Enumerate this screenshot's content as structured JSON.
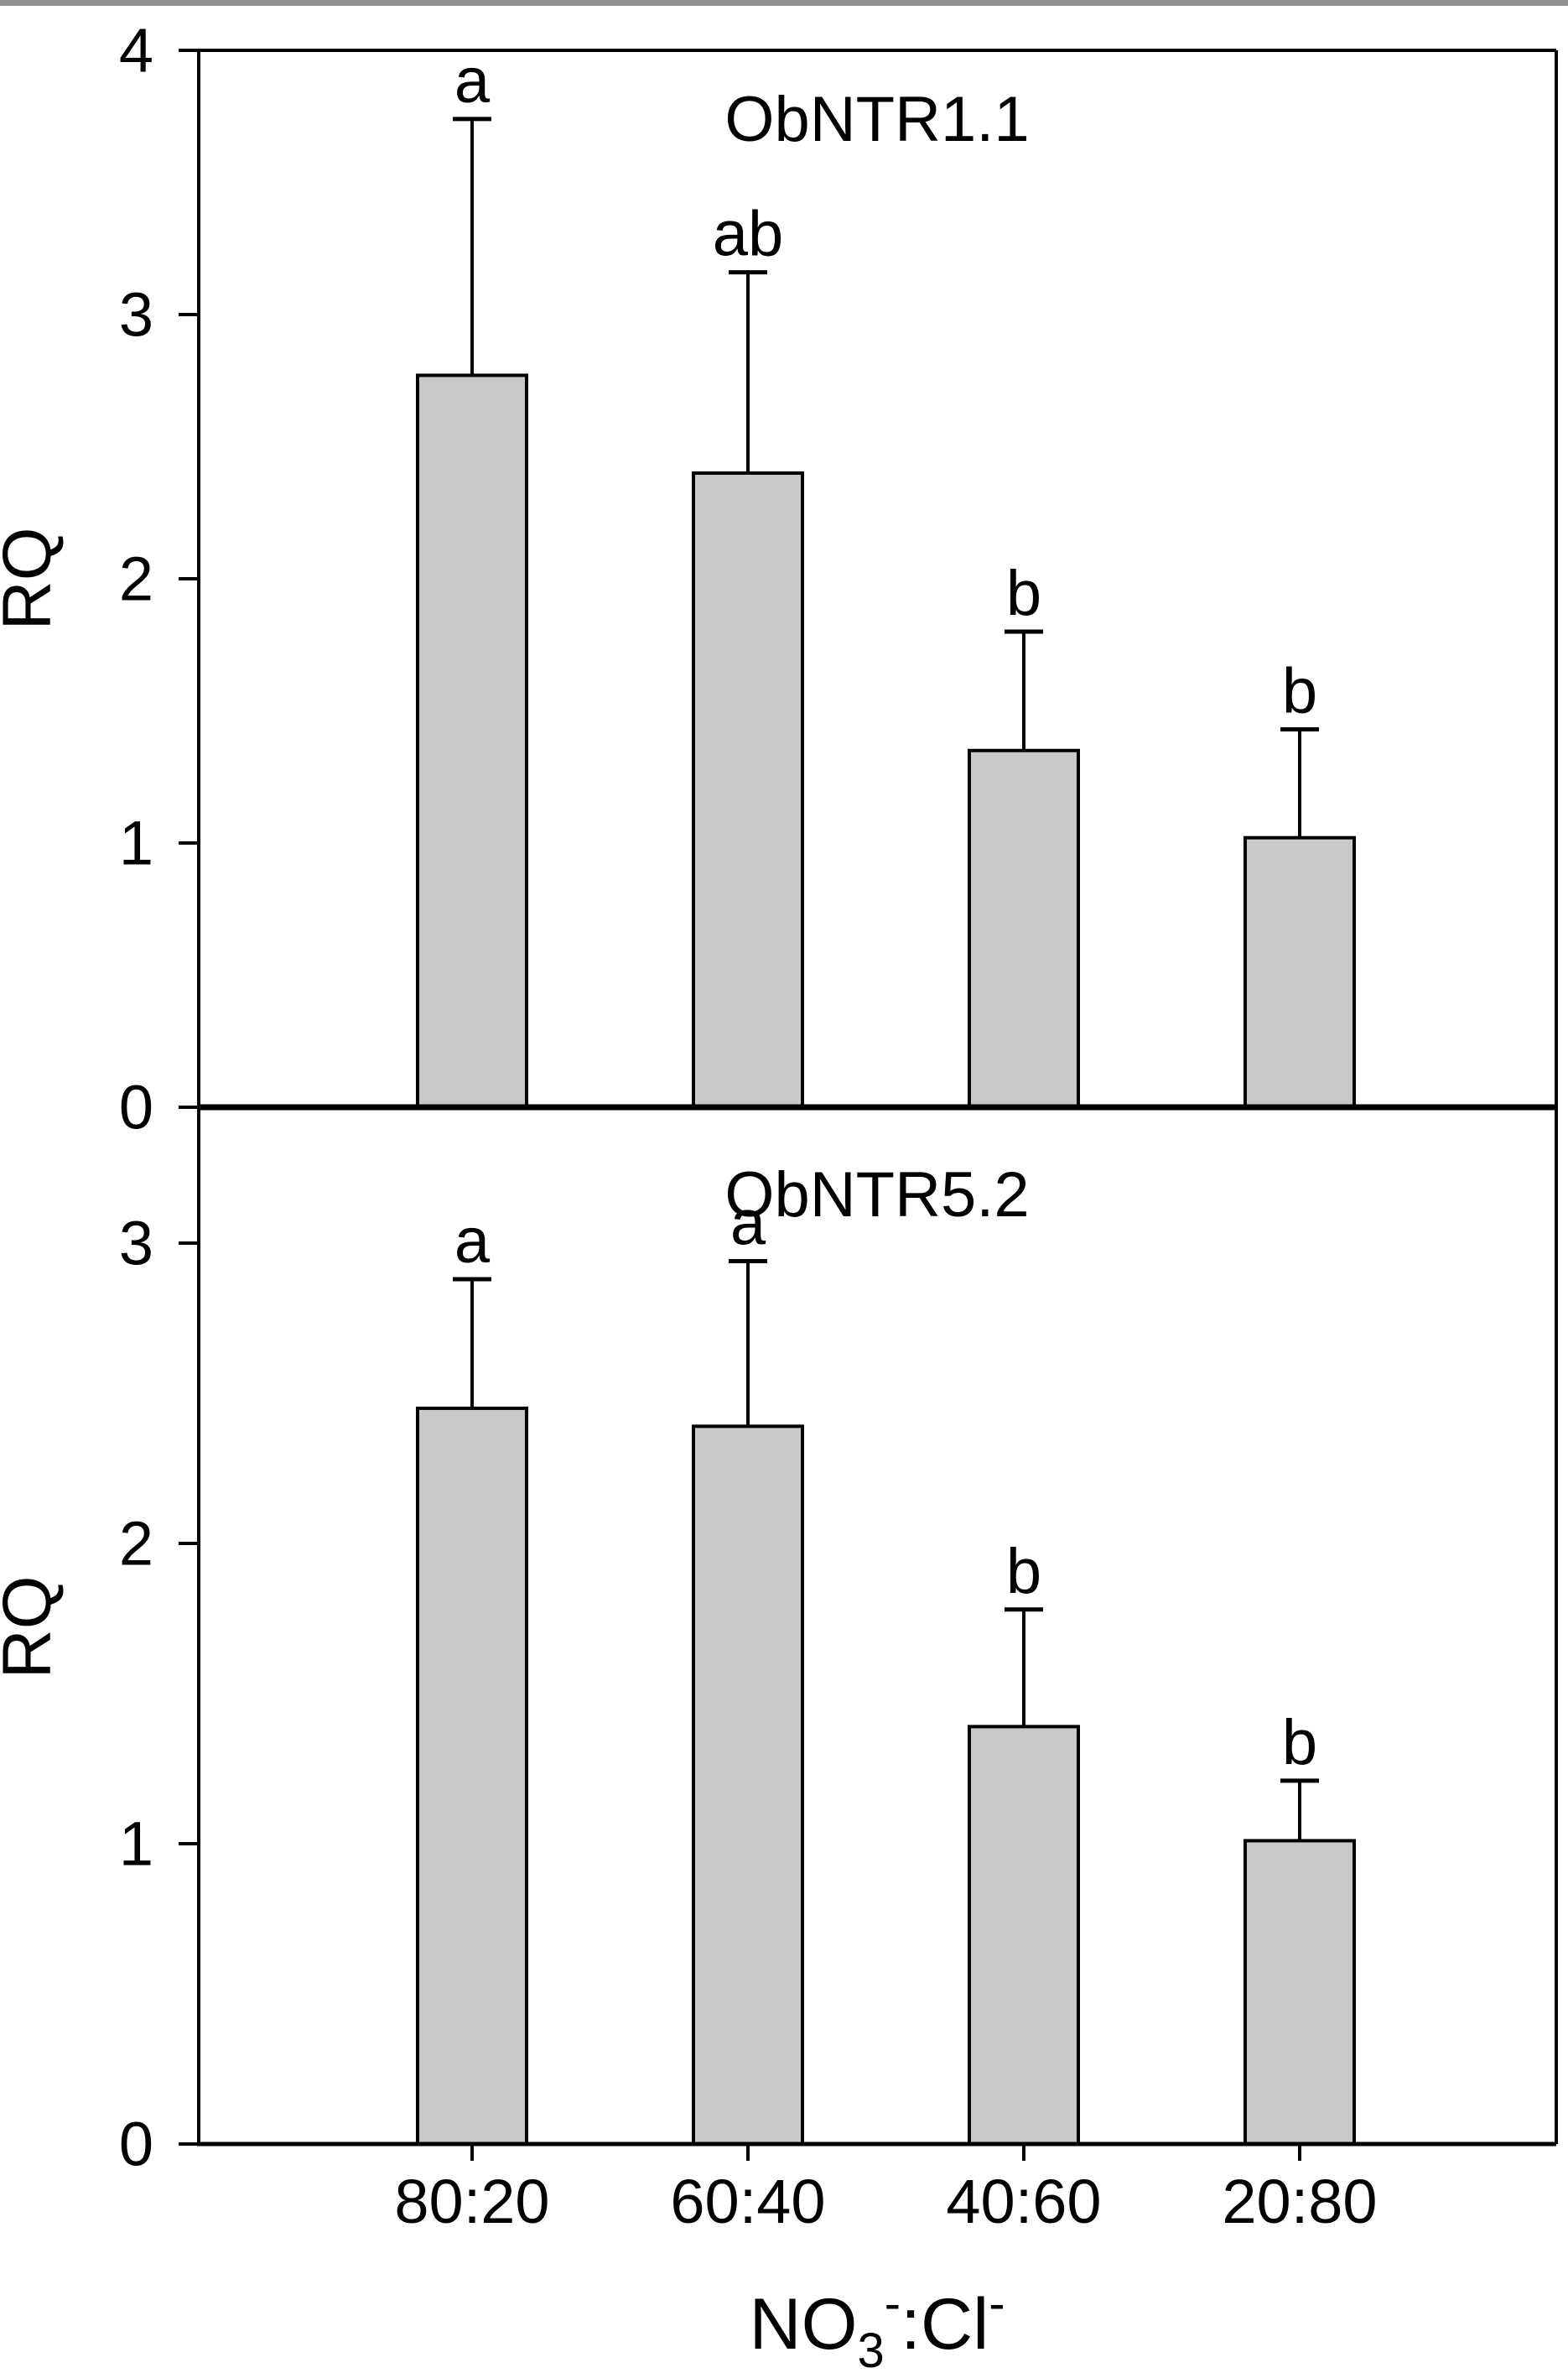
{
  "figure": {
    "background": "#ffffff",
    "bar_fill": "#c9c9c9",
    "bar_stroke": "#000000",
    "axis_color": "#000000",
    "x_axis_title_plain": "NO3-:Cl-",
    "x_axis_title_parts": [
      {
        "text": "NO",
        "style": "normal"
      },
      {
        "text": "3",
        "style": "sub"
      },
      {
        "text": "-",
        "style": "sup"
      },
      {
        "text": ":Cl",
        "style": "normal"
      },
      {
        "text": "-",
        "style": "sup"
      }
    ]
  },
  "chart_data": [
    {
      "type": "bar",
      "panel": "top",
      "title": "ObNTR1.1",
      "ylabel": "RQ",
      "xlabel": "",
      "categories": [
        "80:20",
        "60:40",
        "40:60",
        "20:80"
      ],
      "values": [
        2.77,
        2.4,
        1.35,
        1.02
      ],
      "errors": [
        0.97,
        0.76,
        0.45,
        0.41
      ],
      "sig_letters": [
        "a",
        "ab",
        "b",
        "b"
      ],
      "yticks": [
        0,
        1,
        2,
        3,
        4
      ],
      "ylim": [
        0,
        4
      ],
      "show_x_tick_labels": false,
      "grid": false,
      "legend": "none",
      "error_bar_direction": "upper-only"
    },
    {
      "type": "bar",
      "panel": "bottom",
      "title": "ObNTR5.2",
      "ylabel": "RQ",
      "xlabel": "NO3-:Cl-",
      "categories": [
        "80:20",
        "60:40",
        "40:60",
        "20:80"
      ],
      "values": [
        2.45,
        2.39,
        1.39,
        1.01
      ],
      "errors": [
        0.43,
        0.55,
        0.39,
        0.2
      ],
      "sig_letters": [
        "a",
        "a",
        "b",
        "b"
      ],
      "yticks": [
        0,
        1,
        2,
        3
      ],
      "ylim": [
        0,
        3.45
      ],
      "show_x_tick_labels": true,
      "grid": false,
      "legend": "none",
      "error_bar_direction": "upper-only"
    }
  ]
}
